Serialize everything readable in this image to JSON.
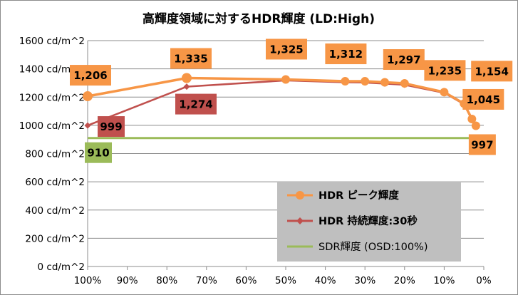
{
  "chart_data": {
    "type": "line",
    "title": "高輝度領域に対するHDR輝度 (LD:High)",
    "y_tick_labels": [
      "0 cd/m^2",
      "200 cd/m^2",
      "400 cd/m^2",
      "600 cd/m^2",
      "800 cd/m^2",
      "1000 cd/m^2",
      "1200 cd/m^2",
      "1400 cd/m^2",
      "1600 cd/m^2"
    ],
    "x_tick_labels": [
      "100%",
      "90%",
      "80%",
      "70%",
      "60%",
      "50%",
      "40%",
      "30%",
      "20%",
      "10%",
      "0%"
    ],
    "xlim": [
      100,
      0
    ],
    "ylim": [
      0,
      1600
    ],
    "x_reversed": true,
    "grid": true,
    "legend_position": "bottom-right",
    "series": [
      {
        "name": "HDR ピーク輝度",
        "color": "#f79646",
        "marker": "circle",
        "x": [
          100,
          75,
          50,
          35,
          30,
          25,
          20,
          10,
          5,
          3,
          2
        ],
        "values": [
          1206,
          1335,
          1325,
          1312,
          1312,
          1305,
          1297,
          1235,
          1154,
          1045,
          997
        ],
        "labels": [
          {
            "text": "1,206",
            "index": 0
          },
          {
            "text": "1,335",
            "index": 1
          },
          {
            "text": "1,325",
            "index": 2
          },
          {
            "text": "1,312",
            "index": 3
          },
          {
            "text": "1,297",
            "index": 6
          },
          {
            "text": "1,235",
            "index": 7
          },
          {
            "text": "1,154",
            "index": 8
          },
          {
            "text": "1,045",
            "index": 9
          },
          {
            "text": "997",
            "index": 10
          }
        ]
      },
      {
        "name": "HDR 持続輝度:30秒",
        "color": "#c0504d",
        "marker": "diamond",
        "x": [
          100,
          75,
          50,
          35,
          30,
          25,
          20,
          10,
          5,
          3,
          2
        ],
        "values": [
          999,
          1274,
          1318,
          1305,
          1303,
          1295,
          1287,
          1230,
          1150,
          1040,
          994
        ],
        "labels": [
          {
            "text": "999",
            "index": 0
          },
          {
            "text": "1,274",
            "index": 1
          }
        ]
      },
      {
        "name": "SDR輝度 (OSD:100%)",
        "color": "#9bbb59",
        "marker": "none",
        "x": [
          100,
          0
        ],
        "values": [
          910,
          910
        ],
        "labels": [
          {
            "text": "910",
            "index": 0
          }
        ]
      }
    ]
  }
}
